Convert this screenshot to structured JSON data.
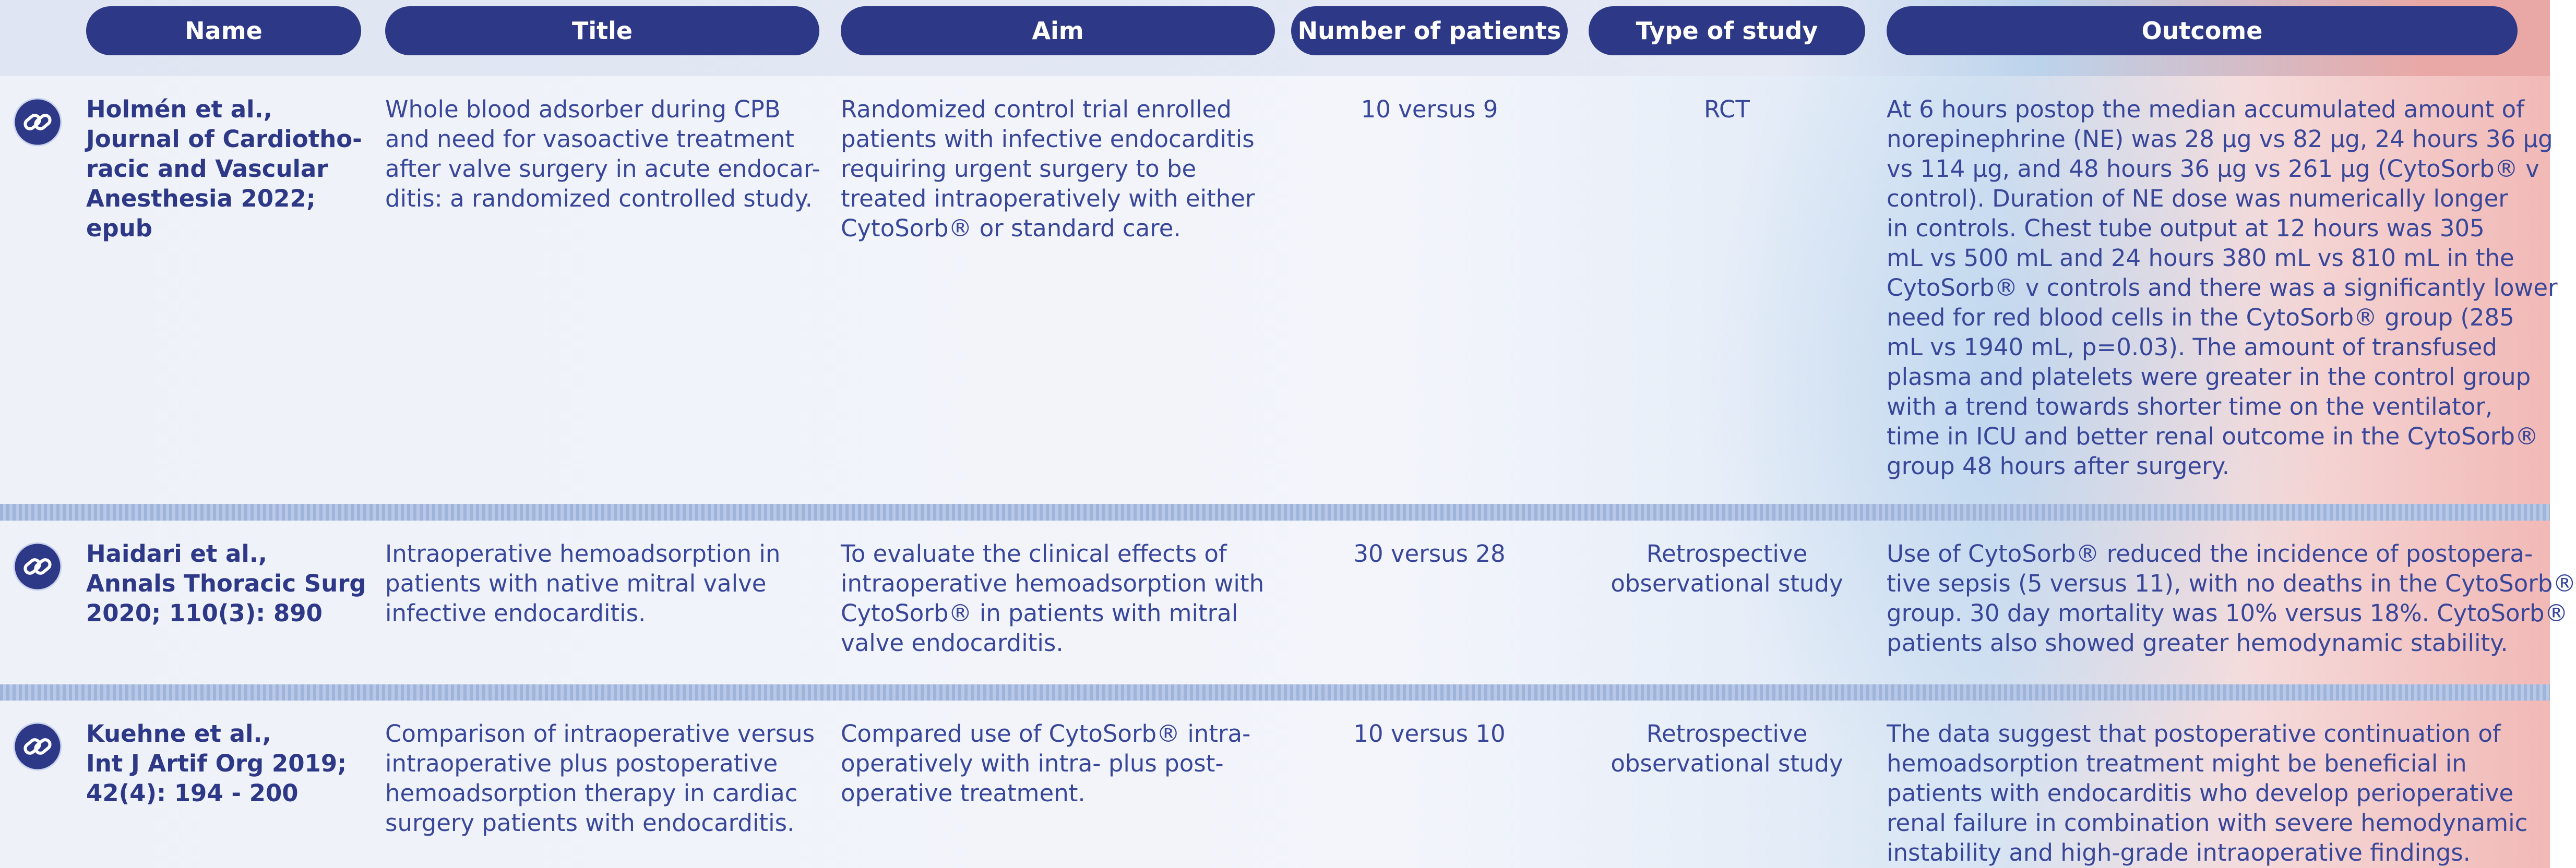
{
  "header": [
    "Name",
    "Title",
    "Aim",
    "Number of patients",
    "Type of study",
    "Outcome"
  ],
  "rows": [
    {
      "name": [
        "Holmén et al.,",
        "Journal of Cardiotho-",
        "racic and Vascular",
        "Anesthesia 2022;",
        "epub"
      ],
      "title": [
        "Whole blood adsorber during CPB",
        "and need for vasoactive treatment",
        "after valve surgery in acute endocar-",
        "ditis: a randomized controlled study."
      ],
      "aim": [
        "Randomized control trial enrolled",
        "patients with infective endocarditis",
        "requiring urgent surgery to be",
        "treated intraoperatively with either",
        "CytoSorb® or standard care."
      ],
      "patients": [
        "10 versus 9"
      ],
      "type": [
        "RCT"
      ],
      "outcome": [
        "At 6 hours postop the median accumulated amount of",
        "norepinephrine (NE) was 28 µg vs 82 µg, 24 hours 36 µg",
        "vs 114 µg, and  48 hours 36 µg vs 261 µg (CytoSorb® v",
        "control). Duration of NE dose was numerically longer",
        "in controls. Chest tube output at 12 hours was 305",
        "mL vs 500 mL and 24 hours 380 mL vs 810 mL in the",
        "CytoSorb® v controls and there was a significantly lower",
        "need for red blood cells in the CytoSorb® group (285",
        "mL vs 1940 mL, p=0.03). The amount of transfused",
        "plasma and platelets were greater in the control group",
        "with a trend towards shorter time on the ventilator,",
        "time in ICU and better renal outcome in the CytoSorb®",
        "group 48 hours after surgery."
      ]
    },
    {
      "name": [
        "Haidari et al.,",
        "Annals Thoracic Surg",
        "2020; 110(3): 890"
      ],
      "title": [
        "Intraoperative hemoadsorption in",
        "patients with native mitral valve",
        "infective endocarditis."
      ],
      "aim": [
        "To evaluate the clinical effects of",
        "intraoperative hemoadsorption with",
        "CytoSorb® in patients with mitral",
        "valve endocarditis."
      ],
      "patients": [
        "30 versus 28"
      ],
      "type": [
        "Retrospective",
        "observational study"
      ],
      "outcome": [
        "Use of CytoSorb® reduced the incidence of postopera-",
        "tive sepsis (5 versus 11), with no deaths in the CytoSorb®",
        "group. 30 day mortality was 10% versus 18%. CytoSorb®",
        "patients also showed greater hemodynamic stability."
      ]
    },
    {
      "name": [
        "Kuehne et al.,",
        "Int J Artif Org 2019;",
        "42(4): 194 - 200"
      ],
      "title": [
        "Comparison of intraoperative versus",
        "intraoperative plus postoperative",
        "hemoadsorption therapy in cardiac",
        "surgery patients with endocarditis."
      ],
      "aim": [
        "Compared use of CytoSorb® intra-",
        "operatively with intra- plus post-",
        "operative treatment."
      ],
      "patients": [
        "10 versus 10"
      ],
      "type": [
        "Retrospective",
        "observational study"
      ],
      "outcome": [
        "The data suggest that postoperative continuation of",
        "hemoadsorption treatment might be beneficial in",
        "patients with endocarditis who develop perioperative",
        "renal failure in combination with severe hemodynamic",
        "instability and high-grade intraoperative findings."
      ]
    }
  ]
}
